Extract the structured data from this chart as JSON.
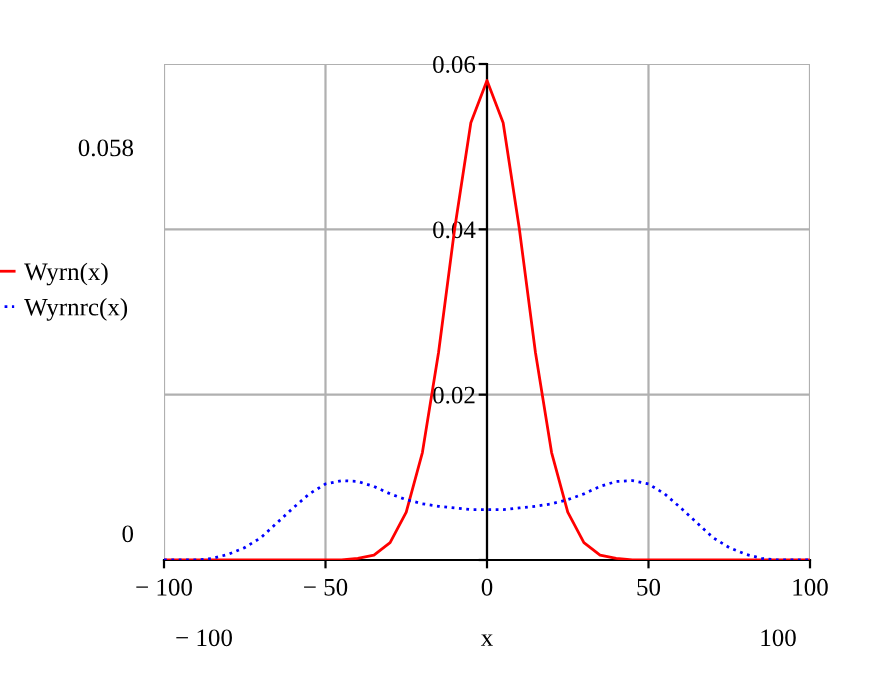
{
  "chart_data": {
    "type": "line",
    "xlabel": "x",
    "x": [
      -100,
      -90,
      -85,
      -80,
      -75,
      -70,
      -65,
      -60,
      -55,
      -50,
      -45,
      -40,
      -35,
      -30,
      -25,
      -20,
      -15,
      -10,
      -5,
      0,
      5,
      10,
      15,
      20,
      25,
      30,
      35,
      40,
      45,
      50,
      55,
      60,
      65,
      70,
      75,
      80,
      85,
      90,
      100
    ],
    "series": [
      {
        "name": "Wyrn(x)",
        "color": "#ff0000",
        "line_style": "solid",
        "values": [
          0,
          0,
          0,
          0,
          0,
          0,
          0,
          0,
          0,
          0,
          0,
          0.0002,
          0.0006,
          0.0021,
          0.0058,
          0.013,
          0.0251,
          0.0401,
          0.0529,
          0.058,
          0.0529,
          0.0401,
          0.0251,
          0.013,
          0.0058,
          0.0021,
          0.0006,
          0.0002,
          0,
          0,
          0,
          0,
          0,
          0,
          0,
          0,
          0,
          0,
          0
        ]
      },
      {
        "name": "Wyrnrc(x)",
        "color": "#0000ff",
        "line_style": "dotted",
        "values": [
          0,
          0,
          0.0002,
          0.0007,
          0.0015,
          0.0027,
          0.0045,
          0.0063,
          0.008,
          0.0092,
          0.0096,
          0.0095,
          0.0089,
          0.008,
          0.0073,
          0.0068,
          0.0065,
          0.0063,
          0.0061,
          0.0061,
          0.0061,
          0.0063,
          0.0065,
          0.0068,
          0.0073,
          0.008,
          0.0089,
          0.0095,
          0.0096,
          0.0092,
          0.008,
          0.0063,
          0.0045,
          0.0027,
          0.0015,
          0.0007,
          0.0002,
          0,
          0
        ]
      }
    ],
    "xlim": [
      -100,
      100
    ],
    "ylim": [
      0,
      0.06
    ],
    "xticks": [
      {
        "value": -100,
        "label": "− 100"
      },
      {
        "value": -50,
        "label": "− 50"
      },
      0,
      50,
      100
    ],
    "yticks": [
      {
        "value": 0,
        "label": null
      },
      0.02,
      0.04,
      0.06
    ],
    "grid": true,
    "legend": "left",
    "marker": "none",
    "annotations": [
      "0.058",
      "0",
      "− 100",
      "100"
    ]
  }
}
